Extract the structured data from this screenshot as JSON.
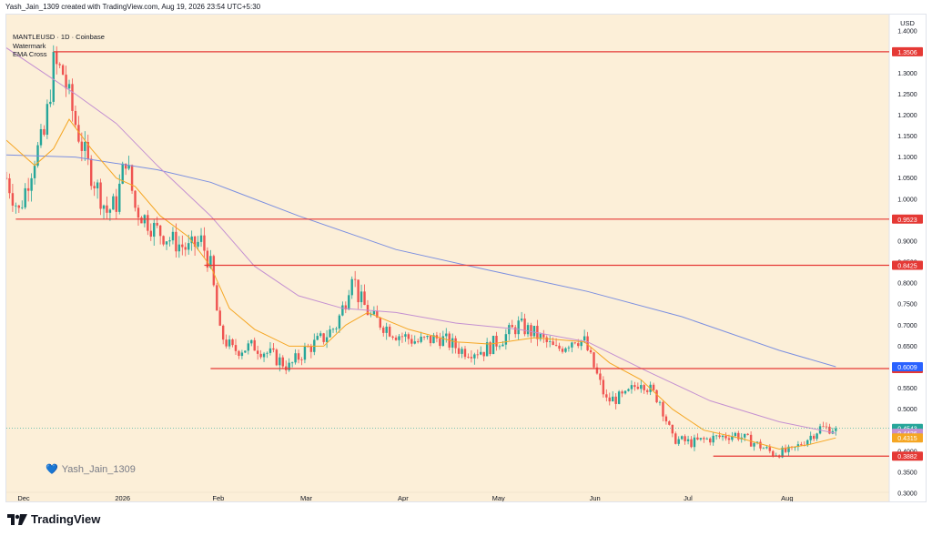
{
  "header": {
    "caption": "Yash_Jain_1309 created with TradingView.com, Aug 19, 2026 23:54 UTC+5:30"
  },
  "legend": {
    "symbol": "MANTLEUSD · 1D · Coinbase",
    "line2": "Watermark",
    "line3": "EMA Cross"
  },
  "watermark": {
    "text": "Yash_Jain_1309",
    "icon": "heart-icon"
  },
  "footer": {
    "brand": "TradingView",
    "icon": "tradingview-logo-icon"
  },
  "colors": {
    "background": "#fcefd8",
    "up": "#26a69a",
    "down": "#ef5350",
    "ema_fast": "#f5a623",
    "ema_mid": "#c490d1",
    "ema_slow": "#7b8fe0",
    "level": "#e53935"
  },
  "chart_data": {
    "type": "candlestick",
    "currency": "USD",
    "ylim": [
      0.2804,
      1.4392
    ],
    "y_ticks": [
      0.3,
      0.35,
      0.4,
      0.45,
      0.5,
      0.55,
      0.6,
      0.65,
      0.7,
      0.75,
      0.8,
      0.85,
      0.9,
      0.95,
      1.0,
      1.05,
      1.1,
      1.15,
      1.2,
      1.25,
      1.3,
      1.35,
      1.4
    ],
    "y_tick_labels": [
      "0.3000",
      "0.3500",
      "0.4000",
      "0.4500",
      "0.5000",
      "0.5500",
      "0.6000",
      "0.6500",
      "0.7000",
      "0.7500",
      "0.8000",
      "0.8500",
      "0.9000",
      "0.9500",
      "1.0000",
      "1.0500",
      "1.1000",
      "1.1500",
      "1.2000",
      "1.2500",
      "1.3000",
      "1.3500",
      "1.4000"
    ],
    "x_range": [
      "2025-11-28",
      "2026-09-05"
    ],
    "x_labels": [
      {
        "date": "2025-12-01",
        "label": "Dec"
      },
      {
        "date": "2026-01-01",
        "label": "2026"
      },
      {
        "date": "2026-02-01",
        "label": "Feb"
      },
      {
        "date": "2026-03-01",
        "label": "Mar"
      },
      {
        "date": "2026-04-01",
        "label": "Apr"
      },
      {
        "date": "2026-05-01",
        "label": "May"
      },
      {
        "date": "2026-06-01",
        "label": "Jun"
      },
      {
        "date": "2026-07-01",
        "label": "Jul"
      },
      {
        "date": "2026-08-01",
        "label": "Aug"
      }
    ],
    "horizontal_levels": [
      {
        "value": 1.3506,
        "label": "1.3506",
        "from": "2025-12-13"
      },
      {
        "value": 0.9523,
        "label": "0.9523",
        "from": "2025-12-01"
      },
      {
        "value": 0.8425,
        "label": "0.8425",
        "from": "2026-01-30"
      },
      {
        "value": 0.5966,
        "label": "0.5966",
        "from": "2026-02-01"
      },
      {
        "value": 0.3882,
        "label": "0.3882",
        "from": "2026-07-11"
      }
    ],
    "price_tags": [
      {
        "value": 0.6009,
        "label": "0.6009",
        "color": "#2962ff"
      },
      {
        "value": 0.4543,
        "label": "0.4543",
        "color": "#26a69a"
      },
      {
        "value": 0.4426,
        "label": "0.4426",
        "color": "#c490d1"
      },
      {
        "value": 0.4315,
        "label": "0.4315",
        "color": "#f5a623"
      }
    ],
    "price_anchors": [
      {
        "date": "2025-11-28",
        "price": 1.05
      },
      {
        "date": "2025-12-02",
        "price": 0.97
      },
      {
        "date": "2025-12-07",
        "price": 1.1
      },
      {
        "date": "2025-12-10",
        "price": 1.15
      },
      {
        "date": "2025-12-13",
        "price": 1.32
      },
      {
        "date": "2025-12-16",
        "price": 1.3
      },
      {
        "date": "2025-12-20",
        "price": 1.18
      },
      {
        "date": "2025-12-24",
        "price": 1.08
      },
      {
        "date": "2025-12-30",
        "price": 0.97
      },
      {
        "date": "2026-01-02",
        "price": 0.99
      },
      {
        "date": "2026-01-05",
        "price": 1.1
      },
      {
        "date": "2026-01-08",
        "price": 0.98
      },
      {
        "date": "2026-01-14",
        "price": 0.93
      },
      {
        "date": "2026-01-20",
        "price": 0.9
      },
      {
        "date": "2026-01-25",
        "price": 0.88
      },
      {
        "date": "2026-01-29",
        "price": 0.9
      },
      {
        "date": "2026-02-01",
        "price": 0.84
      },
      {
        "date": "2026-02-04",
        "price": 0.68
      },
      {
        "date": "2026-02-08",
        "price": 0.64
      },
      {
        "date": "2026-02-15",
        "price": 0.65
      },
      {
        "date": "2026-02-20",
        "price": 0.63
      },
      {
        "date": "2026-02-26",
        "price": 0.6
      },
      {
        "date": "2026-03-03",
        "price": 0.64
      },
      {
        "date": "2026-03-09",
        "price": 0.67
      },
      {
        "date": "2026-03-13",
        "price": 0.7
      },
      {
        "date": "2026-03-16",
        "price": 0.76
      },
      {
        "date": "2026-03-18",
        "price": 0.83
      },
      {
        "date": "2026-03-20",
        "price": 0.77
      },
      {
        "date": "2026-03-24",
        "price": 0.72
      },
      {
        "date": "2026-04-01",
        "price": 0.68
      },
      {
        "date": "2026-04-08",
        "price": 0.66
      },
      {
        "date": "2026-04-15",
        "price": 0.67
      },
      {
        "date": "2026-04-22",
        "price": 0.64
      },
      {
        "date": "2026-04-29",
        "price": 0.64
      },
      {
        "date": "2026-05-05",
        "price": 0.67
      },
      {
        "date": "2026-05-10",
        "price": 0.7
      },
      {
        "date": "2026-05-15",
        "price": 0.68
      },
      {
        "date": "2026-05-22",
        "price": 0.64
      },
      {
        "date": "2026-05-28",
        "price": 0.67
      },
      {
        "date": "2026-05-31",
        "price": 0.66
      },
      {
        "date": "2026-06-04",
        "price": 0.58
      },
      {
        "date": "2026-06-07",
        "price": 0.52
      },
      {
        "date": "2026-06-13",
        "price": 0.53
      },
      {
        "date": "2026-06-18",
        "price": 0.57
      },
      {
        "date": "2026-06-24",
        "price": 0.52
      },
      {
        "date": "2026-06-28",
        "price": 0.43
      },
      {
        "date": "2026-07-04",
        "price": 0.42
      },
      {
        "date": "2026-07-10",
        "price": 0.43
      },
      {
        "date": "2026-07-18",
        "price": 0.44
      },
      {
        "date": "2026-07-24",
        "price": 0.42
      },
      {
        "date": "2026-07-30",
        "price": 0.395
      },
      {
        "date": "2026-08-05",
        "price": 0.4
      },
      {
        "date": "2026-08-10",
        "price": 0.43
      },
      {
        "date": "2026-08-14",
        "price": 0.455
      },
      {
        "date": "2026-08-19",
        "price": 0.4543
      }
    ],
    "ema_fast_path": [
      {
        "date": "2025-11-28",
        "v": 1.14
      },
      {
        "date": "2025-12-07",
        "v": 1.08
      },
      {
        "date": "2025-12-13",
        "v": 1.12
      },
      {
        "date": "2025-12-18",
        "v": 1.19
      },
      {
        "date": "2025-12-25",
        "v": 1.12
      },
      {
        "date": "2026-01-02",
        "v": 1.05
      },
      {
        "date": "2026-01-08",
        "v": 1.03
      },
      {
        "date": "2026-01-16",
        "v": 0.96
      },
      {
        "date": "2026-01-25",
        "v": 0.91
      },
      {
        "date": "2026-02-01",
        "v": 0.84
      },
      {
        "date": "2026-02-07",
        "v": 0.74
      },
      {
        "date": "2026-02-15",
        "v": 0.69
      },
      {
        "date": "2026-02-26",
        "v": 0.65
      },
      {
        "date": "2026-03-09",
        "v": 0.65
      },
      {
        "date": "2026-03-16",
        "v": 0.7
      },
      {
        "date": "2026-03-23",
        "v": 0.73
      },
      {
        "date": "2026-04-05",
        "v": 0.69
      },
      {
        "date": "2026-04-20",
        "v": 0.66
      },
      {
        "date": "2026-05-01",
        "v": 0.655
      },
      {
        "date": "2026-05-15",
        "v": 0.67
      },
      {
        "date": "2026-05-31",
        "v": 0.66
      },
      {
        "date": "2026-06-08",
        "v": 0.61
      },
      {
        "date": "2026-06-18",
        "v": 0.57
      },
      {
        "date": "2026-06-28",
        "v": 0.5
      },
      {
        "date": "2026-07-08",
        "v": 0.45
      },
      {
        "date": "2026-07-20",
        "v": 0.43
      },
      {
        "date": "2026-08-01",
        "v": 0.405
      },
      {
        "date": "2026-08-10",
        "v": 0.415
      },
      {
        "date": "2026-08-19",
        "v": 0.4315
      }
    ],
    "ema_mid_path": [
      {
        "date": "2025-11-28",
        "v": 1.36
      },
      {
        "date": "2025-12-10",
        "v": 1.3
      },
      {
        "date": "2025-12-20",
        "v": 1.25
      },
      {
        "date": "2026-01-02",
        "v": 1.18
      },
      {
        "date": "2026-01-15",
        "v": 1.08
      },
      {
        "date": "2026-02-01",
        "v": 0.96
      },
      {
        "date": "2026-02-15",
        "v": 0.84
      },
      {
        "date": "2026-03-01",
        "v": 0.77
      },
      {
        "date": "2026-03-15",
        "v": 0.74
      },
      {
        "date": "2026-04-01",
        "v": 0.73
      },
      {
        "date": "2026-04-20",
        "v": 0.705
      },
      {
        "date": "2026-05-10",
        "v": 0.69
      },
      {
        "date": "2026-06-01",
        "v": 0.66
      },
      {
        "date": "2026-06-20",
        "v": 0.59
      },
      {
        "date": "2026-07-10",
        "v": 0.52
      },
      {
        "date": "2026-08-01",
        "v": 0.47
      },
      {
        "date": "2026-08-19",
        "v": 0.4426
      }
    ],
    "ema_slow_path": [
      {
        "date": "2025-11-28",
        "v": 1.105
      },
      {
        "date": "2025-12-20",
        "v": 1.1
      },
      {
        "date": "2026-01-15",
        "v": 1.07
      },
      {
        "date": "2026-02-01",
        "v": 1.04
      },
      {
        "date": "2026-03-01",
        "v": 0.96
      },
      {
        "date": "2026-04-01",
        "v": 0.88
      },
      {
        "date": "2026-05-01",
        "v": 0.83
      },
      {
        "date": "2026-06-01",
        "v": 0.78
      },
      {
        "date": "2026-07-01",
        "v": 0.72
      },
      {
        "date": "2026-08-01",
        "v": 0.64
      },
      {
        "date": "2026-08-19",
        "v": 0.6009
      }
    ]
  }
}
